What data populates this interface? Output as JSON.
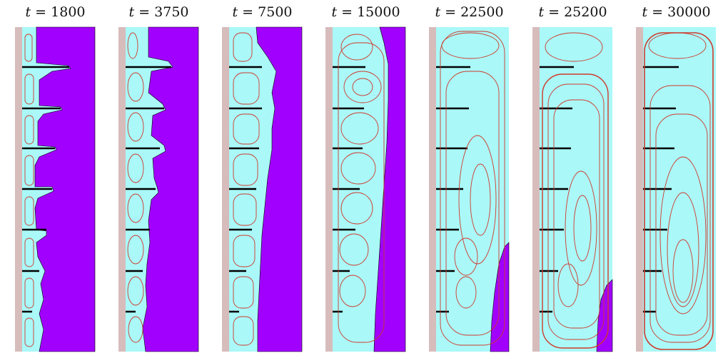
{
  "figure": {
    "panels": [
      {
        "time_label": "1800"
      },
      {
        "time_label": "3750"
      },
      {
        "time_label": "7500"
      },
      {
        "time_label": "15000"
      },
      {
        "time_label": "22500"
      },
      {
        "time_label": "25200"
      },
      {
        "time_label": "30000"
      }
    ],
    "variable": "t",
    "equals": "=",
    "colors": {
      "fluid": "#aaf8f8",
      "phase": "#a100ff",
      "wall": "#d7bcbc",
      "streamline": "#cf3a2c",
      "fin": "#000000"
    }
  }
}
